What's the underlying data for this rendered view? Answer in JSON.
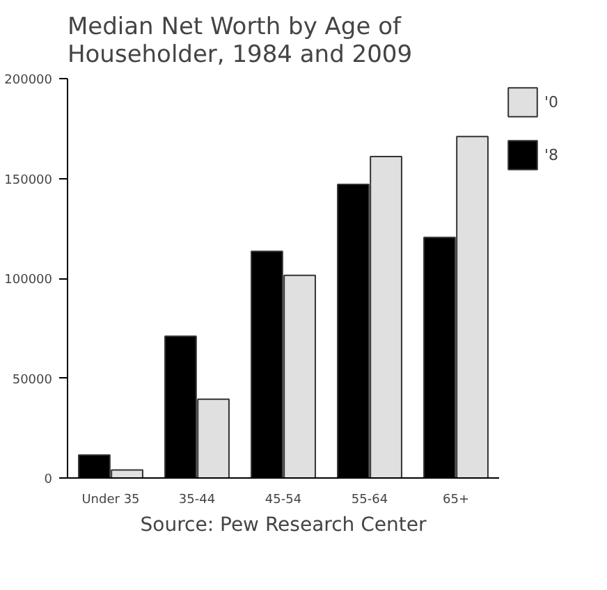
{
  "chart_data": {
    "type": "bar",
    "title": "Median Net Worth by Age of Householder, 1984 and 2009",
    "categories": [
      "Under 35",
      "35-44",
      "45-54",
      "55-64",
      "65+"
    ],
    "series": [
      {
        "name": "'8",
        "color": "#000000",
        "values": [
          11500,
          71000,
          113500,
          147000,
          120500
        ]
      },
      {
        "name": "'0",
        "color": "#e0e0e0",
        "values": [
          4000,
          39500,
          101500,
          161000,
          171000
        ]
      }
    ],
    "ylim": [
      0,
      200000
    ],
    "yticks": [
      0,
      50000,
      100000,
      150000,
      200000
    ],
    "legend": "right",
    "annotations": [
      "Source: Pew Research Center"
    ]
  }
}
